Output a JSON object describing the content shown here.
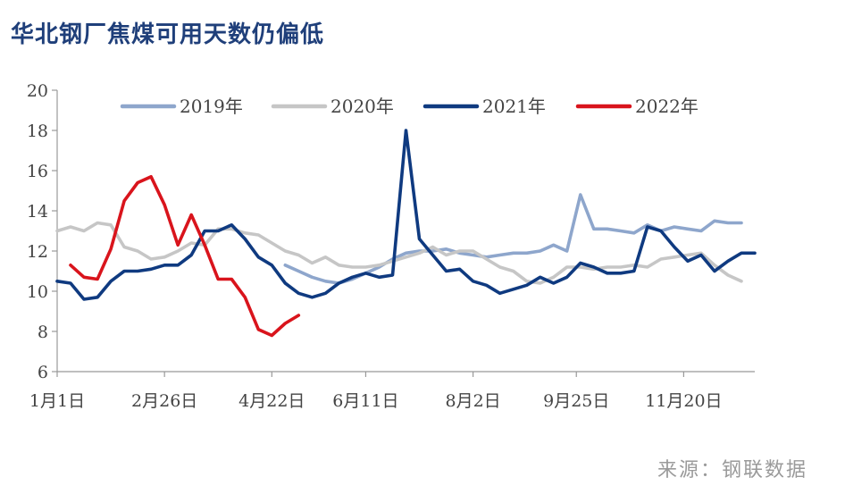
{
  "title": "华北钢厂焦煤可用天数仍偏低",
  "source": "来源：钢联数据",
  "chart_data": {
    "type": "line",
    "ylim": [
      6,
      20
    ],
    "yticks": [
      6,
      8,
      10,
      12,
      14,
      16,
      18,
      20
    ],
    "xlim": [
      0,
      52
    ],
    "xticks": [
      {
        "label": "1月1日",
        "week": 0
      },
      {
        "label": "2月26日",
        "week": 8
      },
      {
        "label": "4月22日",
        "week": 16
      },
      {
        "label": "6月11日",
        "week": 23
      },
      {
        "label": "8月2日",
        "week": 31
      },
      {
        "label": "9月25日",
        "week": 38.7
      },
      {
        "label": "11月20日",
        "week": 46.7
      }
    ],
    "legend_position": "top",
    "series": [
      {
        "name": "2019年",
        "color": "#8ea6cc",
        "x": [
          17,
          18,
          19,
          20,
          21,
          22,
          23,
          24,
          25,
          26,
          27,
          28,
          29,
          30,
          31,
          32,
          33,
          34,
          35,
          36,
          37,
          38,
          39,
          40,
          41,
          42,
          43,
          44,
          45,
          46,
          47,
          48,
          49,
          50,
          51
        ],
        "values": [
          11.3,
          11.0,
          10.7,
          10.5,
          10.4,
          10.6,
          10.9,
          11.2,
          11.6,
          11.9,
          12.0,
          12.0,
          12.1,
          11.9,
          11.8,
          11.7,
          11.8,
          11.9,
          11.9,
          12.0,
          12.3,
          12.0,
          14.8,
          13.1,
          13.1,
          13.0,
          12.9,
          13.3,
          13.0,
          13.2,
          13.1,
          13.0,
          13.5,
          13.4,
          13.4
        ]
      },
      {
        "name": "2020年",
        "color": "#c6c6c6",
        "x": [
          0,
          1,
          2,
          3,
          4,
          5,
          6,
          7,
          8,
          9,
          10,
          11,
          12,
          13,
          14,
          15,
          16,
          17,
          18,
          19,
          20,
          21,
          22,
          23,
          24,
          25,
          26,
          27,
          28,
          29,
          30,
          31,
          32,
          33,
          34,
          35,
          36,
          37,
          38,
          39,
          40,
          41,
          42,
          43,
          44,
          45,
          46,
          47,
          48,
          49,
          50,
          51
        ],
        "values": [
          13.0,
          13.2,
          13.0,
          13.4,
          13.3,
          12.2,
          12.0,
          11.6,
          11.7,
          12.0,
          12.4,
          12.3,
          13.1,
          13.1,
          12.9,
          12.8,
          12.4,
          12.0,
          11.8,
          11.4,
          11.7,
          11.3,
          11.2,
          11.2,
          11.3,
          11.5,
          11.7,
          11.9,
          12.2,
          11.8,
          12.0,
          12.0,
          11.6,
          11.2,
          11.0,
          10.5,
          10.4,
          10.7,
          11.2,
          11.2,
          11.1,
          11.2,
          11.2,
          11.3,
          11.2,
          11.6,
          11.7,
          11.8,
          11.9,
          11.3,
          10.8,
          10.5
        ]
      },
      {
        "name": "2021年",
        "color": "#0f3a80",
        "x": [
          0,
          1,
          2,
          3,
          4,
          5,
          6,
          7,
          8,
          9,
          10,
          11,
          12,
          13,
          14,
          15,
          16,
          17,
          18,
          19,
          20,
          21,
          22,
          23,
          24,
          25,
          26,
          27,
          28,
          29,
          30,
          31,
          32,
          33,
          34,
          35,
          36,
          37,
          38,
          39,
          40,
          41,
          42,
          43,
          44,
          45,
          46,
          47,
          48,
          49,
          50,
          51,
          52
        ],
        "values": [
          10.5,
          10.4,
          9.6,
          9.7,
          10.5,
          11.0,
          11.0,
          11.1,
          11.3,
          11.3,
          11.8,
          13.0,
          13.0,
          13.3,
          12.6,
          11.7,
          11.3,
          10.4,
          9.9,
          9.7,
          9.9,
          10.4,
          10.7,
          10.9,
          10.7,
          10.8,
          18.0,
          12.6,
          11.8,
          11.0,
          11.1,
          10.5,
          10.3,
          9.9,
          10.1,
          10.3,
          10.7,
          10.4,
          10.7,
          11.4,
          11.2,
          10.9,
          10.9,
          11.0,
          13.2,
          13.0,
          12.2,
          11.5,
          11.8,
          11.0,
          11.5,
          11.9,
          11.9
        ]
      },
      {
        "name": "2022年",
        "color": "#d9141c",
        "x": [
          1,
          2,
          3,
          4,
          5,
          6,
          7,
          8,
          9,
          10,
          11,
          12,
          13,
          14,
          15,
          16,
          17,
          18
        ],
        "values": [
          11.3,
          10.7,
          10.6,
          12.1,
          14.5,
          15.4,
          15.7,
          14.3,
          12.3,
          13.8,
          12.3,
          10.6,
          10.6,
          9.7,
          8.1,
          7.8,
          8.4,
          8.8
        ]
      }
    ]
  }
}
